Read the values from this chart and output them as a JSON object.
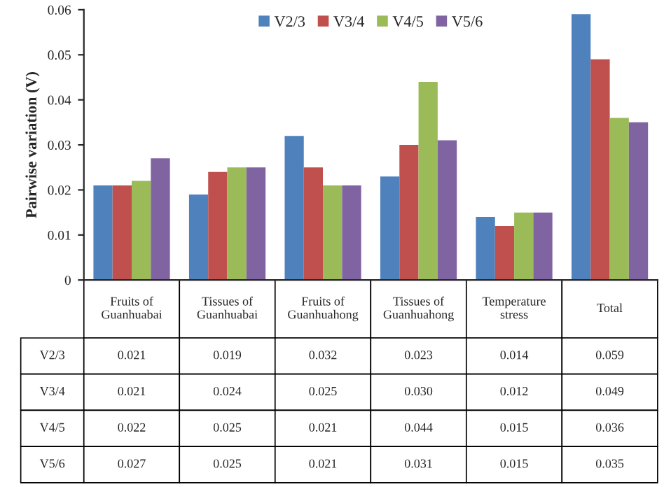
{
  "chart_data": {
    "type": "bar",
    "ylabel": "Pairwise variation (V)",
    "categories": [
      "Fruits of\nGuanhuabai",
      "Tissues of\nGuanhuabai",
      "Fruits of\nGuanhuahong",
      "Tissues of\nGuanhuahong",
      "Temperature\nstress",
      "Total"
    ],
    "series": [
      {
        "name": "V2/3",
        "color": "#4f81bd",
        "values": [
          0.021,
          0.019,
          0.032,
          0.023,
          0.014,
          0.059
        ],
        "value_labels": [
          "0.021",
          "0.019",
          "0.032",
          "0.023",
          "0.014",
          "0.059"
        ]
      },
      {
        "name": "V3/4",
        "color": "#c0504d",
        "values": [
          0.021,
          0.024,
          0.025,
          0.03,
          0.012,
          0.049
        ],
        "value_labels": [
          "0.021",
          "0.024",
          "0.025",
          "0.030",
          "0.012",
          "0.049"
        ]
      },
      {
        "name": "V4/5",
        "color": "#9bbb59",
        "values": [
          0.022,
          0.025,
          0.021,
          0.044,
          0.015,
          0.036
        ],
        "value_labels": [
          "0.022",
          "0.025",
          "0.021",
          "0.044",
          "0.015",
          "0.036"
        ]
      },
      {
        "name": "V5/6",
        "color": "#8064a2",
        "values": [
          0.027,
          0.025,
          0.021,
          0.031,
          0.015,
          0.035
        ],
        "value_labels": [
          "0.027",
          "0.025",
          "0.021",
          "0.031",
          "0.015",
          "0.035"
        ]
      }
    ],
    "ylim": [
      0,
      0.06
    ],
    "yticks": [
      0,
      0.01,
      0.02,
      0.03,
      0.04,
      0.05,
      0.06
    ],
    "tick_labels": "y",
    "legend": "top",
    "grid": false
  }
}
